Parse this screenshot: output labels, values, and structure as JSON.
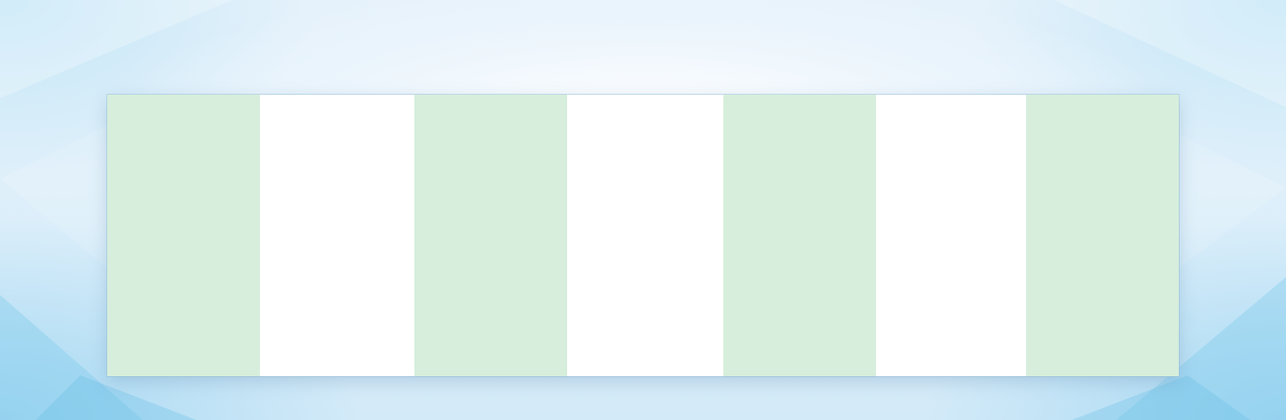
{
  "page": {
    "background": "light-blue-faceted-gradient"
  },
  "strips": [
    {
      "name": "green-strip",
      "color": "#d6eedb"
    },
    {
      "name": "white-strip",
      "color": "#ffffff"
    },
    {
      "name": "green-strip",
      "color": "#d6eedb"
    },
    {
      "name": "white-strip",
      "color": "#ffffff"
    },
    {
      "name": "green-strip",
      "color": "#d6eedb"
    },
    {
      "name": "white-strip",
      "color": "#ffffff"
    },
    {
      "name": "green-strip",
      "color": "#d6eedb"
    }
  ],
  "colors": {
    "green": "#d6eedb",
    "white": "#ffffff",
    "bg_blue": "#d3eaf8"
  }
}
